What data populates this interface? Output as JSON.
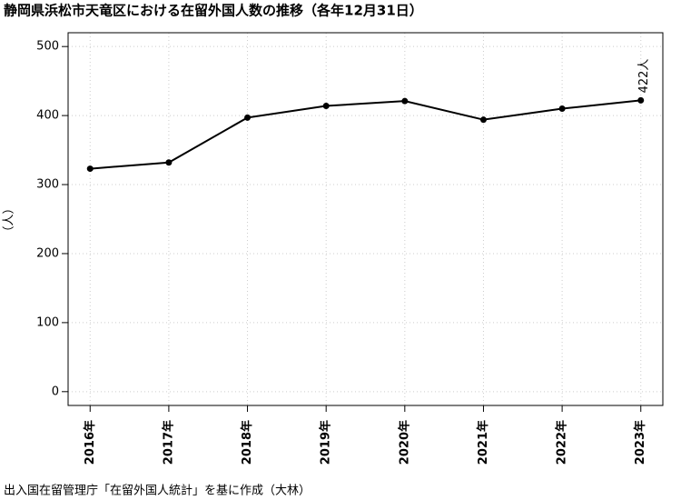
{
  "chart_data": {
    "type": "line",
    "title": "静岡県浜松市天竜区における在留外国人数の推移（各年12月31日）",
    "y_label": "（人）",
    "source": "出入国在留管理庁「在留外国人統計」を基に作成（大林）",
    "categories": [
      "2016年",
      "2017年",
      "2018年",
      "2019年",
      "2020年",
      "2021年",
      "2022年",
      "2023年"
    ],
    "values": [
      323,
      332,
      397,
      414,
      421,
      394,
      410,
      422
    ],
    "value_labels": [
      null,
      null,
      null,
      null,
      null,
      null,
      null,
      "422人"
    ],
    "color": "#000000",
    "ylim": [
      -20,
      520
    ],
    "yticks": [
      0,
      100,
      200,
      300,
      400,
      500
    ],
    "grid": true
  }
}
